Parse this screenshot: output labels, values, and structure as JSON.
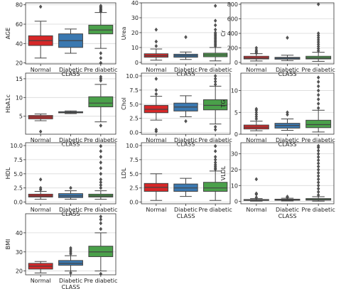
{
  "colors": {
    "Normal": "#d62728",
    "Diabetic": "#3a78b0",
    "Pre diabetic": "#4aa04a",
    "grid": "#d9d9d9",
    "axes": "#333333"
  },
  "chart_data": [
    {
      "type": "box",
      "ylabel": "AGE",
      "xlabel": "CLASS",
      "categories": [
        "Normal",
        "Diabetic",
        "Pre diabetic"
      ],
      "ylim": [
        19,
        82
      ],
      "yticks": [
        20,
        40,
        60,
        80
      ],
      "grid": true,
      "boxes": [
        {
          "name": "Normal",
          "whislo": 25,
          "q1": 38,
          "med": 43,
          "q3": 48,
          "whishi": 63,
          "fliers": [
            78
          ]
        },
        {
          "name": "Diabetic",
          "whislo": 30,
          "q1": 36,
          "med": 43,
          "q3": 50,
          "whishi": 55,
          "fliers": []
        },
        {
          "name": "Pre diabetic",
          "whislo": 35,
          "q1": 50,
          "med": 54,
          "q3": 59,
          "whishi": 72,
          "fliers": [
            20,
            25,
            30,
            73,
            74,
            75,
            76,
            77,
            78,
            79
          ]
        }
      ]
    },
    {
      "type": "box",
      "ylabel": "Urea",
      "xlabel": "CLASS",
      "categories": [
        "Normal",
        "Diabetic",
        "Pre diabetic"
      ],
      "ylim": [
        -1,
        40
      ],
      "yticks": [
        0,
        10,
        20,
        30,
        40
      ],
      "grid": true,
      "boxes": [
        {
          "name": "Normal",
          "whislo": 1.5,
          "q1": 3.5,
          "med": 4.5,
          "q3": 5.8,
          "whishi": 9,
          "fliers": [
            11,
            14,
            22
          ]
        },
        {
          "name": "Diabetic",
          "whislo": 2,
          "q1": 3.5,
          "med": 4.5,
          "q3": 5.5,
          "whishi": 7,
          "fliers": [
            17
          ]
        },
        {
          "name": "Pre diabetic",
          "whislo": 1,
          "q1": 3.8,
          "med": 5,
          "q3": 6.2,
          "whishi": 10,
          "fliers": [
            11,
            12,
            13,
            14,
            15,
            16,
            17,
            18,
            19,
            20,
            22,
            25,
            28,
            38
          ]
        }
      ]
    },
    {
      "type": "box",
      "ylabel": "Cr",
      "xlabel": "CLASS",
      "categories": [
        "Normal",
        "Diabetic",
        "Pre diabetic"
      ],
      "ylim": [
        -20,
        820
      ],
      "yticks": [
        0,
        200,
        400,
        600,
        800
      ],
      "grid": true,
      "boxes": [
        {
          "name": "Normal",
          "whislo": 20,
          "q1": 48,
          "med": 62,
          "q3": 85,
          "whishi": 120,
          "fliers": [
            130,
            150,
            170,
            200
          ]
        },
        {
          "name": "Diabetic",
          "whislo": 25,
          "q1": 45,
          "med": 58,
          "q3": 70,
          "whishi": 100,
          "fliers": [
            340
          ]
        },
        {
          "name": "Pre diabetic",
          "whislo": 15,
          "q1": 48,
          "med": 62,
          "q3": 85,
          "whishi": 140,
          "fliers": [
            160,
            190,
            220,
            250,
            280,
            310,
            340,
            370,
            400,
            800
          ]
        }
      ]
    },
    {
      "type": "box",
      "ylabel": "HbA1c",
      "xlabel": "CLASS",
      "categories": [
        "Normal",
        "Diabetic",
        "Pre diabetic"
      ],
      "ylim": [
        0.2,
        16.5
      ],
      "yticks": [
        5,
        10,
        15
      ],
      "grid": true,
      "boxes": [
        {
          "name": "Normal",
          "whislo": 3.8,
          "q1": 4.3,
          "med": 4.8,
          "q3": 5.2,
          "whishi": 5.6,
          "fliers": [
            0.9
          ]
        },
        {
          "name": "Diabetic",
          "whislo": 5.7,
          "q1": 5.9,
          "med": 6.0,
          "q3": 6.2,
          "whishi": 6.4,
          "fliers": []
        },
        {
          "name": "Pre diabetic",
          "whislo": 3.5,
          "q1": 7.5,
          "med": 8.5,
          "q3": 10.2,
          "whishi": 13.5,
          "fliers": [
            2.5,
            14.5,
            15,
            15.5
          ]
        }
      ]
    },
    {
      "type": "box",
      "ylabel": "Chol",
      "xlabel": "CLASS",
      "categories": [
        "Normal",
        "Diabetic",
        "Pre diabetic"
      ],
      "ylim": [
        -0.3,
        10.5
      ],
      "yticks": [
        0.0,
        2.5,
        5.0,
        7.5,
        10.0
      ],
      "grid": true,
      "boxes": [
        {
          "name": "Normal",
          "whislo": 2.2,
          "q1": 3.5,
          "med": 4.1,
          "q3": 4.8,
          "whishi": 6.4,
          "fliers": [
            0.2,
            0.5,
            6.8,
            7.5,
            9.5
          ]
        },
        {
          "name": "Diabetic",
          "whislo": 2.8,
          "q1": 3.8,
          "med": 4.5,
          "q3": 5.2,
          "whishi": 6.5,
          "fliers": [
            2.0
          ]
        },
        {
          "name": "Pre diabetic",
          "whislo": 1.5,
          "q1": 4.0,
          "med": 4.8,
          "q3": 5.8,
          "whishi": 8.2,
          "fliers": [
            0.5,
            1.0,
            8.5,
            9.0,
            9.5,
            10.0
          ]
        }
      ]
    },
    {
      "type": "box",
      "ylabel": "TG",
      "xlabel": "CLASS",
      "categories": [
        "Normal",
        "Diabetic",
        "Pre diabetic"
      ],
      "ylim": [
        0,
        14
      ],
      "yticks": [
        0,
        5,
        10
      ],
      "grid": true,
      "boxes": [
        {
          "name": "Normal",
          "whislo": 0.8,
          "q1": 1.2,
          "med": 1.6,
          "q3": 2.1,
          "whishi": 3.0,
          "fliers": [
            3.5,
            4.0,
            4.5,
            5.0,
            5.5,
            5.8
          ]
        },
        {
          "name": "Diabetic",
          "whislo": 0.9,
          "q1": 1.4,
          "med": 2.0,
          "q3": 2.5,
          "whishi": 3.5,
          "fliers": [
            4.5,
            5.0
          ]
        },
        {
          "name": "Pre diabetic",
          "whislo": 0.5,
          "q1": 1.5,
          "med": 2.2,
          "q3": 3.2,
          "whishi": 5.5,
          "fliers": [
            6,
            7,
            8,
            9,
            10,
            11,
            12,
            13
          ]
        }
      ]
    },
    {
      "type": "box",
      "ylabel": "HDL",
      "xlabel": "CLASS",
      "categories": [
        "Normal",
        "Diabetic",
        "Pre diabetic"
      ],
      "ylim": [
        -0.3,
        10.5
      ],
      "yticks": [
        0.0,
        2.5,
        5.0,
        7.5,
        10.0
      ],
      "grid": true,
      "boxes": [
        {
          "name": "Normal",
          "whislo": 0.5,
          "q1": 0.9,
          "med": 1.1,
          "q3": 1.4,
          "whishi": 1.9,
          "fliers": [
            2.2,
            2.5,
            4.0
          ]
        },
        {
          "name": "Diabetic",
          "whislo": 0.5,
          "q1": 0.8,
          "med": 1.1,
          "q3": 1.5,
          "whishi": 2.0,
          "fliers": [
            2.5
          ]
        },
        {
          "name": "Pre diabetic",
          "whislo": 0.5,
          "q1": 0.9,
          "med": 1.1,
          "q3": 1.4,
          "whishi": 2.0,
          "fliers": [
            2.5,
            3,
            3.5,
            4,
            5,
            6,
            7,
            8,
            9,
            9.9
          ]
        }
      ]
    },
    {
      "type": "box",
      "ylabel": "LDL",
      "xlabel": "CLASS",
      "categories": [
        "Normal",
        "Diabetic",
        "Pre diabetic"
      ],
      "ylim": [
        -0.3,
        10.5
      ],
      "yticks": [
        0.0,
        2.5,
        5.0,
        7.5,
        10.0
      ],
      "grid": true,
      "boxes": [
        {
          "name": "Normal",
          "whislo": 0.3,
          "q1": 1.9,
          "med": 2.6,
          "q3": 3.3,
          "whishi": 5.0,
          "fliers": []
        },
        {
          "name": "Diabetic",
          "whislo": 1.0,
          "q1": 1.9,
          "med": 2.5,
          "q3": 3.2,
          "whishi": 4.2,
          "fliers": []
        },
        {
          "name": "Pre diabetic",
          "whislo": 0.3,
          "q1": 1.9,
          "med": 2.5,
          "q3": 3.5,
          "whishi": 5.5,
          "fliers": [
            5.8,
            6.0,
            6.3,
            6.6,
            7.0,
            7.5,
            8.0,
            9.0,
            9.9
          ]
        }
      ]
    },
    {
      "type": "box",
      "ylabel": "VLDL",
      "xlabel": "CLASS",
      "categories": [
        "Normal",
        "Diabetic",
        "Pre diabetic"
      ],
      "ylim": [
        -1.5,
        37
      ],
      "yticks": [
        0,
        10,
        20,
        30
      ],
      "grid": true,
      "boxes": [
        {
          "name": "Normal",
          "whislo": 0.2,
          "q1": 0.6,
          "med": 0.9,
          "q3": 1.2,
          "whishi": 1.8,
          "fliers": [
            2.5,
            4.5,
            5.0,
            14.0
          ]
        },
        {
          "name": "Diabetic",
          "whislo": 0.3,
          "q1": 0.7,
          "med": 1.0,
          "q3": 1.4,
          "whishi": 2.0,
          "fliers": [
            2.5,
            3.0
          ]
        },
        {
          "name": "Pre diabetic",
          "whislo": 0.2,
          "q1": 0.8,
          "med": 1.2,
          "q3": 1.8,
          "whishi": 3.0,
          "fliers": [
            4,
            6,
            8,
            10,
            12,
            14,
            16,
            18,
            20,
            22,
            24,
            26,
            28,
            30,
            32,
            34,
            35
          ]
        }
      ]
    },
    {
      "type": "box",
      "ylabel": "BMI",
      "xlabel": "CLASS",
      "categories": [
        "Normal",
        "Diabetic",
        "Pre diabetic"
      ],
      "ylim": [
        18,
        50
      ],
      "yticks": [
        20,
        30,
        40
      ],
      "grid": true,
      "boxes": [
        {
          "name": "Normal",
          "whislo": 19,
          "q1": 21,
          "med": 22.5,
          "q3": 24,
          "whishi": 25,
          "fliers": []
        },
        {
          "name": "Diabetic",
          "whislo": 20,
          "q1": 23,
          "med": 24,
          "q3": 25.5,
          "whishi": 28,
          "fliers": [
            19,
            29,
            30,
            31,
            32
          ]
        },
        {
          "name": "Pre diabetic",
          "whislo": 20,
          "q1": 27.5,
          "med": 30,
          "q3": 33,
          "whishi": 40,
          "fliers": [
            18.5,
            42,
            45,
            47,
            48.5
          ]
        }
      ]
    }
  ]
}
